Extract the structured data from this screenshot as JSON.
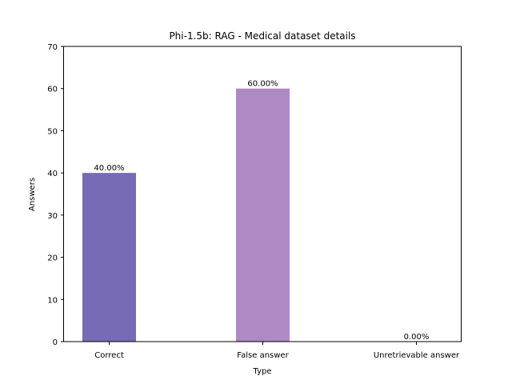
{
  "chart_data": {
    "type": "bar",
    "title": "Phi-1.5b: RAG - Medical dataset details",
    "xlabel": "Type",
    "ylabel": "Answers",
    "ylim": [
      0,
      70
    ],
    "yticks": [
      "0",
      "10",
      "20",
      "30",
      "40",
      "50",
      "60",
      "70"
    ],
    "categories": [
      "Correct",
      "False answer",
      "Unretrievable answer"
    ],
    "values": [
      40,
      60,
      0
    ],
    "value_labels": [
      "40.00%",
      "60.00%",
      "0.00%"
    ],
    "colors": [
      "#776bb6",
      "#ae89c4",
      "#d3a2c9"
    ],
    "grid": false,
    "legend": "none"
  }
}
